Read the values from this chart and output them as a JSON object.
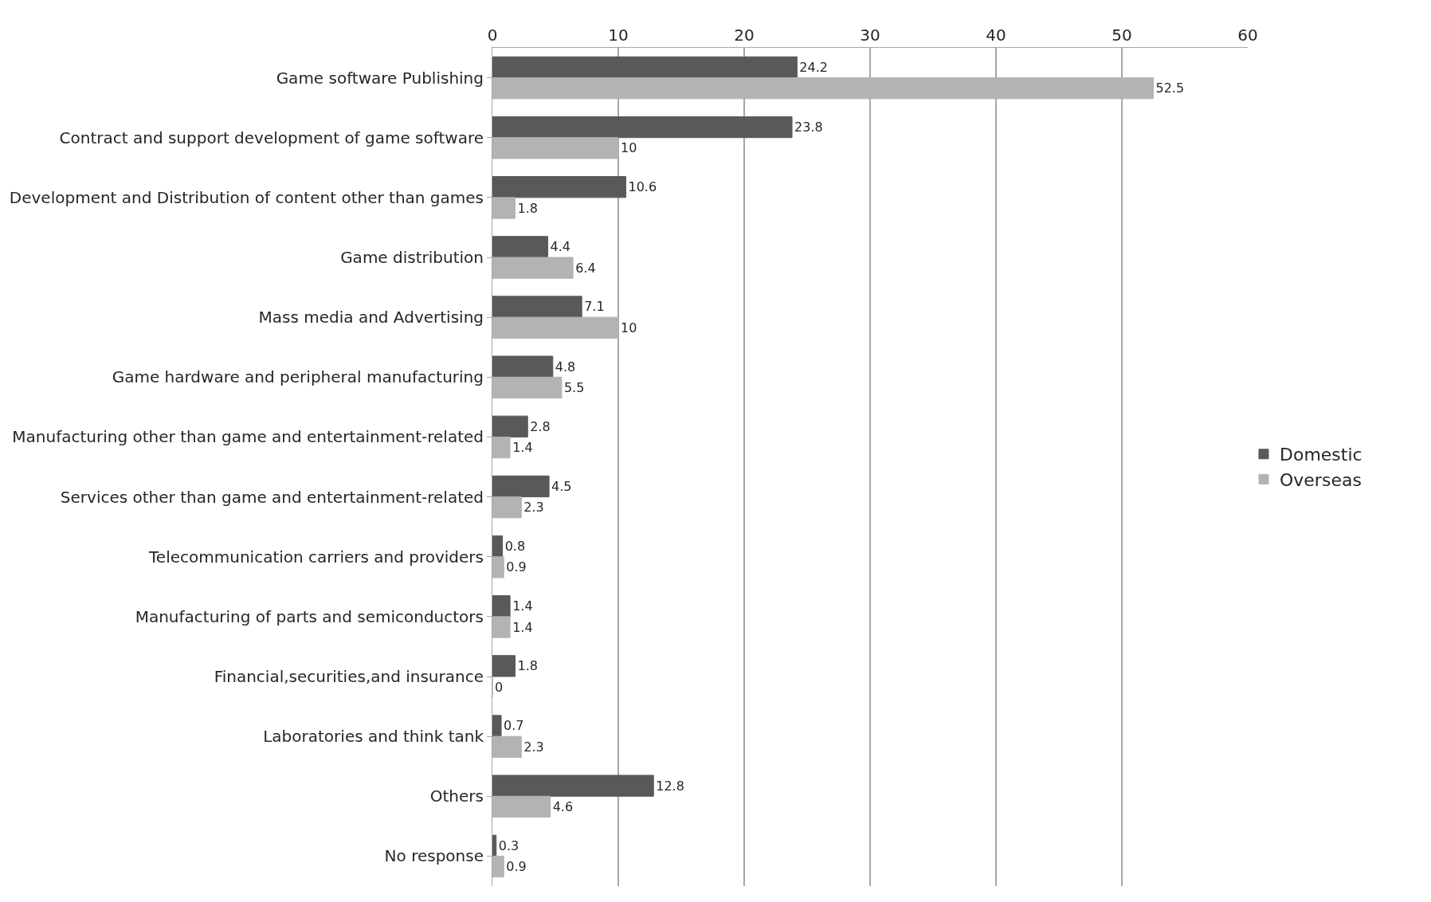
{
  "chart_data": {
    "type": "bar",
    "orientation": "horizontal",
    "categories": [
      "Game software Publishing",
      "Contract and support development of game software",
      "Development and Distribution of content other than games",
      "Game distribution",
      "Mass media and Advertising",
      "Game hardware and peripheral manufacturing",
      "Manufacturing other than game and entertainment-related",
      "Services other than game and entertainment-related",
      "Telecommunication carriers and providers",
      "Manufacturing of parts and semiconductors",
      "Financial,securities,and insurance",
      "Laboratories and think tank",
      "Others",
      "No response"
    ],
    "series": [
      {
        "name": "Domestic",
        "color": "#595959",
        "values": [
          24.2,
          23.8,
          10.6,
          4.4,
          7.1,
          4.8,
          2.8,
          4.5,
          0.8,
          1.4,
          1.8,
          0.7,
          12.8,
          0.3
        ]
      },
      {
        "name": "Overseas",
        "color": "#b3b3b3",
        "values": [
          52.5,
          10,
          1.8,
          6.4,
          10,
          5.5,
          1.4,
          2.3,
          0.9,
          1.4,
          0,
          2.3,
          4.6,
          0.9
        ]
      }
    ],
    "xlim": [
      0,
      60
    ],
    "xticks": [
      0,
      10,
      20,
      30,
      40,
      50,
      60
    ],
    "grid": "x",
    "legend": "right",
    "data_labels": true
  }
}
